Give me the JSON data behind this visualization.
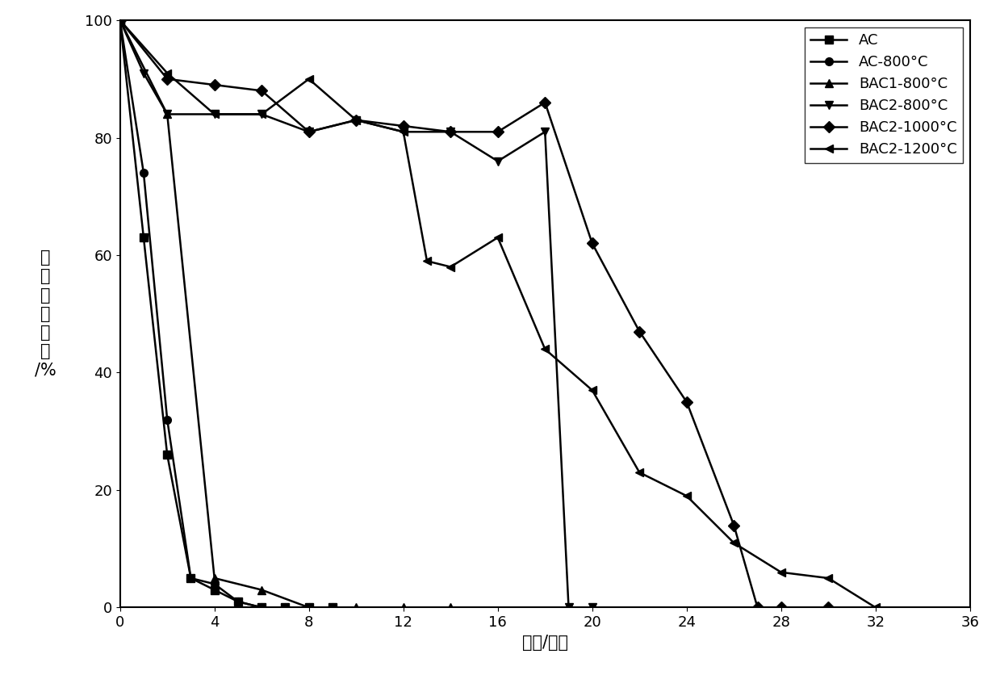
{
  "series": [
    {
      "key": "AC",
      "x": [
        0,
        1,
        2,
        3,
        4,
        5,
        6,
        7,
        8,
        9
      ],
      "y": [
        100,
        63,
        26,
        5,
        3,
        1,
        0,
        0,
        0,
        0
      ],
      "marker": "s",
      "label": "AC"
    },
    {
      "key": "AC-800C",
      "x": [
        0,
        1,
        2,
        3,
        4,
        5,
        6,
        7,
        8,
        9
      ],
      "y": [
        100,
        74,
        32,
        5,
        4,
        1,
        0,
        0,
        0,
        0
      ],
      "marker": "o",
      "label": "AC-800°C"
    },
    {
      "key": "BAC1-800C",
      "x": [
        0,
        2,
        4,
        6,
        8,
        10,
        12,
        14
      ],
      "y": [
        100,
        84,
        5,
        3,
        0,
        0,
        0,
        0
      ],
      "marker": "^",
      "label": "BAC1-800°C"
    },
    {
      "key": "BAC2-800C",
      "x": [
        0,
        1,
        2,
        4,
        6,
        8,
        10,
        12,
        14,
        16,
        18,
        19,
        20
      ],
      "y": [
        100,
        91,
        84,
        84,
        84,
        81,
        83,
        81,
        81,
        76,
        81,
        0,
        0
      ],
      "marker": "v",
      "label": "BAC2-800°C"
    },
    {
      "key": "BAC2-1000C",
      "x": [
        0,
        2,
        4,
        6,
        8,
        10,
        12,
        14,
        16,
        18,
        20,
        22,
        24,
        26,
        27,
        28,
        30
      ],
      "y": [
        100,
        90,
        89,
        88,
        81,
        83,
        82,
        81,
        81,
        86,
        62,
        47,
        35,
        14,
        0,
        0,
        0
      ],
      "marker": "D",
      "label": "BAC2-1000°C"
    },
    {
      "key": "BAC2-1200C",
      "x": [
        0,
        2,
        4,
        6,
        8,
        10,
        12,
        13,
        14,
        16,
        18,
        20,
        22,
        24,
        26,
        28,
        30,
        32
      ],
      "y": [
        100,
        91,
        84,
        84,
        90,
        83,
        81,
        59,
        58,
        63,
        44,
        37,
        23,
        19,
        11,
        6,
        5,
        0
      ],
      "marker": "<",
      "label": "BAC2-1200°C"
    }
  ],
  "xlabel": "时间/小时",
  "ylabel_chars": [
    "相",
    "对",
    "催",
    "化",
    "活",
    "性",
    "/%"
  ],
  "xlim": [
    0,
    36
  ],
  "ylim": [
    0,
    100
  ],
  "xticks": [
    0,
    4,
    8,
    12,
    16,
    20,
    24,
    28,
    32,
    36
  ],
  "yticks": [
    0,
    20,
    40,
    60,
    80,
    100
  ],
  "line_color": "#000000",
  "legend_loc": "upper right",
  "fontsize_legend": 13,
  "fontsize_axis": 15,
  "fontsize_ticks": 13
}
